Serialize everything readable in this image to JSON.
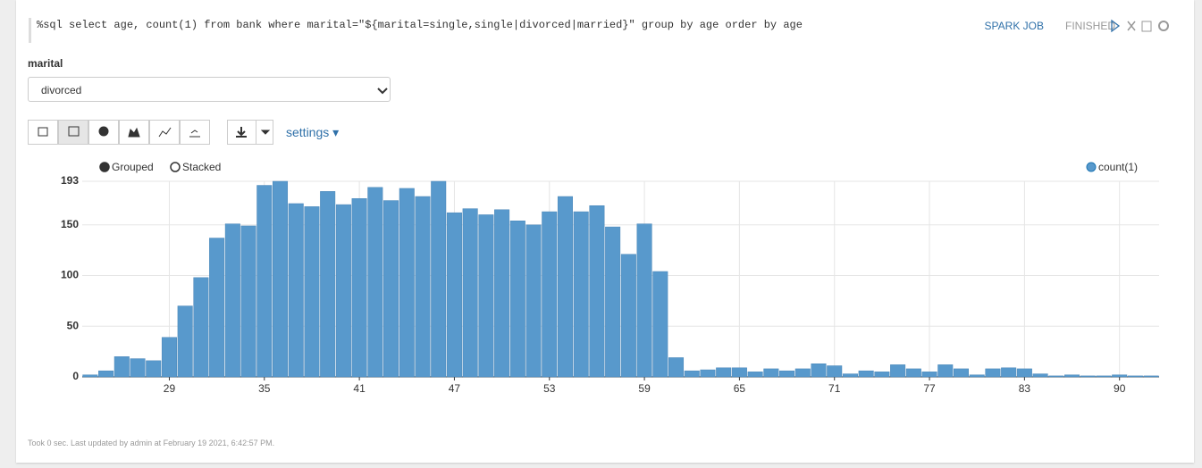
{
  "paragraph": {
    "code": "%sql select age, count(1) from bank where marital=\"${marital=single,single|divorced|married}\" group by age order by age",
    "job_label": "SPARK JOB",
    "status": "FINISHED"
  },
  "form": {
    "label": "marital",
    "selected": "divorced"
  },
  "toolbar": {
    "settings": "settings"
  },
  "chart_data": {
    "type": "bar",
    "categories": [
      null,
      null,
      null,
      null,
      null,
      "29",
      null,
      null,
      null,
      null,
      null,
      "35",
      null,
      null,
      null,
      null,
      null,
      "41",
      null,
      null,
      null,
      null,
      null,
      "47",
      null,
      null,
      null,
      null,
      null,
      "53",
      null,
      null,
      null,
      null,
      null,
      "59",
      null,
      null,
      null,
      null,
      null,
      "65",
      null,
      null,
      null,
      null,
      null,
      "71",
      null,
      null,
      null,
      null,
      null,
      "77",
      null,
      null,
      null,
      null,
      null,
      "83",
      null,
      null,
      null,
      null,
      null,
      "90",
      null,
      null
    ],
    "series": [
      {
        "name": "count(1)",
        "color": "#5899cc",
        "values": [
          2,
          6,
          20,
          18,
          16,
          39,
          70,
          98,
          137,
          151,
          149,
          189,
          193,
          171,
          168,
          183,
          170,
          176,
          187,
          174,
          186,
          178,
          193,
          162,
          166,
          160,
          165,
          154,
          150,
          163,
          178,
          163,
          169,
          148,
          121,
          151,
          104,
          19,
          6,
          7,
          9,
          9,
          5,
          8,
          6,
          8,
          13,
          11,
          3,
          6,
          5,
          12,
          8,
          5,
          12,
          8,
          2,
          8,
          9,
          8,
          3,
          1,
          2,
          1,
          1,
          2,
          1,
          1
        ]
      }
    ],
    "ylim": [
      0,
      193
    ],
    "yticks": [
      0,
      50,
      100,
      150,
      193
    ],
    "grid": true,
    "modes": [
      "Grouped",
      "Stacked"
    ],
    "mode": "Grouped",
    "legend": "top-right"
  },
  "footer": "Took 0 sec. Last updated by admin at February 19 2021, 6:42:57 PM."
}
